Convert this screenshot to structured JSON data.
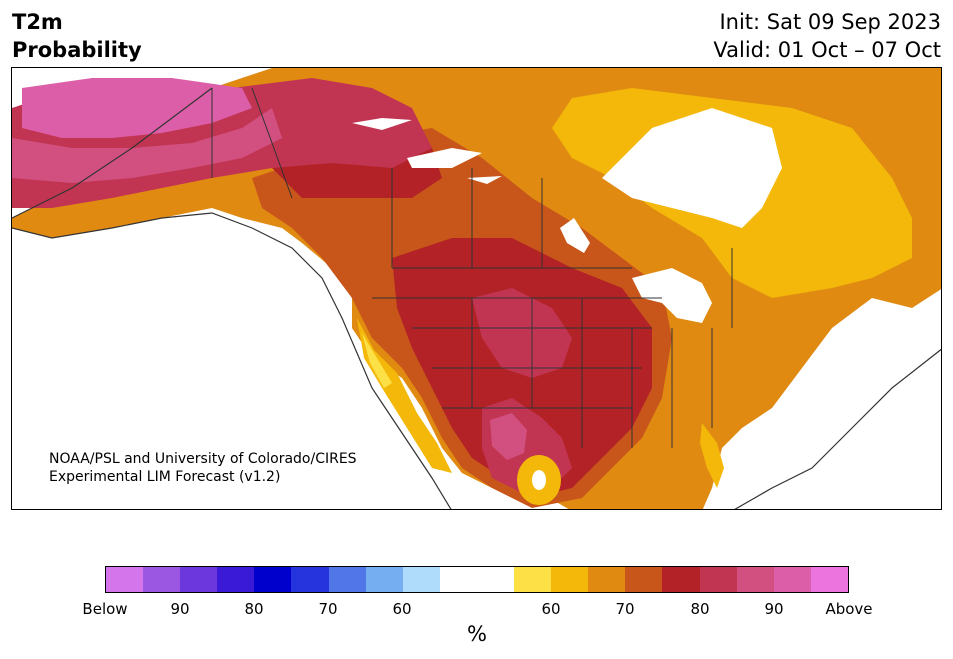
{
  "title": {
    "line1": "T2m",
    "line2": "Probability"
  },
  "dates": {
    "init": "Init: Sat 09 Sep 2023",
    "valid": "Valid: 01 Oct – 07 Oct"
  },
  "credit": {
    "line1": "NOAA/PSL and University of Colorado/CIRES",
    "line2": "Experimental LIM Forecast (v1.2)"
  },
  "colorbar": {
    "unit": "%",
    "colors": [
      "#d475ec",
      "#9b56e2",
      "#6c37dc",
      "#3a1ad6",
      "#0000cd",
      "#2634de",
      "#5176e8",
      "#76aef2",
      "#afdcfb",
      "#ffffff",
      "#ffffff",
      "#fde046",
      "#f3b80a",
      "#e08a12",
      "#c8561a",
      "#b32226",
      "#c13553",
      "#d2507f",
      "#dc5ea8",
      "#eb74de"
    ],
    "labels": [
      "Below",
      "90",
      "80",
      "70",
      "60",
      "60",
      "70",
      "80",
      "90",
      "Above"
    ]
  },
  "legend_colors": {
    "p60": "#fde046",
    "p70": "#e08a12",
    "p75": "#c8561a",
    "p80": "#b32226",
    "p85": "#c13553",
    "p90": "#d2507f",
    "above": "#dc5ea8"
  }
}
